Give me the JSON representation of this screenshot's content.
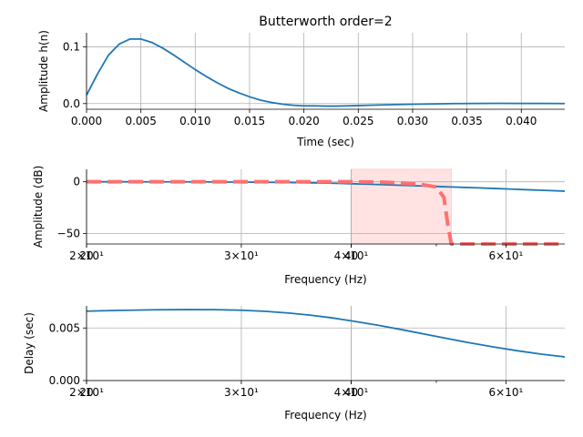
{
  "chart_data": [
    {
      "type": "line",
      "title": "Butterworth order=2",
      "xlabel": "Time (sec)",
      "ylabel": "Amplitude h(n)",
      "xlim": [
        0.0,
        0.044
      ],
      "ylim": [
        -0.01,
        0.125
      ],
      "xticks": [
        "0.000",
        "0.005",
        "0.010",
        "0.015",
        "0.020",
        "0.025",
        "0.030",
        "0.035",
        "0.040"
      ],
      "xtick_values": [
        0.0,
        0.005,
        0.01,
        0.015,
        0.02,
        0.025,
        0.03,
        0.035,
        0.04
      ],
      "yticks": [
        "0.0",
        "0.1"
      ],
      "ytick_values": [
        0.0,
        0.1
      ],
      "grid": true,
      "series": [
        {
          "color": "#1f77b4",
          "x": [
            0.0,
            0.001,
            0.002,
            0.003,
            0.004,
            0.005,
            0.006,
            0.007,
            0.008,
            0.009,
            0.01,
            0.011,
            0.012,
            0.013,
            0.014,
            0.015,
            0.016,
            0.017,
            0.018,
            0.019,
            0.02,
            0.021,
            0.022,
            0.023,
            0.024,
            0.025,
            0.026,
            0.028,
            0.03,
            0.032,
            0.034,
            0.036,
            0.038,
            0.04,
            0.042,
            0.044
          ],
          "y": [
            0.015,
            0.052,
            0.085,
            0.105,
            0.114,
            0.114,
            0.108,
            0.098,
            0.086,
            0.073,
            0.06,
            0.048,
            0.037,
            0.027,
            0.019,
            0.012,
            0.006,
            0.002,
            -0.001,
            -0.003,
            -0.004,
            -0.004,
            -0.0045,
            -0.0045,
            -0.004,
            -0.0035,
            -0.003,
            -0.002,
            -0.0012,
            -0.0005,
            0.0,
            0.0003,
            0.0004,
            0.0003,
            0.0002,
            0.0001
          ]
        }
      ]
    },
    {
      "type": "line",
      "xlabel": "Frequency (Hz)",
      "ylabel": "Amplitude (dB)",
      "xscale": "log",
      "xlim": [
        20,
        70
      ],
      "ylim": [
        -60,
        12
      ],
      "xticks": [
        "2×10¹",
        "20",
        "3×10¹",
        "4×10¹",
        "40",
        "6×10¹"
      ],
      "xtick_values": [
        20,
        20,
        30,
        40,
        40,
        60
      ],
      "minor_xtick_values": [
        50
      ],
      "yticks": [
        "0",
        "−50"
      ],
      "ytick_values": [
        0,
        -50
      ],
      "grid": true,
      "shaded_band": {
        "x": [
          40,
          52
        ],
        "y": [
          -60,
          12
        ],
        "color": "#ffcccc"
      },
      "series": [
        {
          "color": "#1f77b4",
          "x": [
            20,
            22,
            24,
            26,
            28,
            30,
            32,
            34,
            36,
            38,
            40,
            42,
            44,
            46,
            48,
            50,
            52,
            55,
            58,
            61,
            64,
            67,
            70
          ],
          "y": [
            0.0,
            0.0,
            -0.1,
            -0.1,
            -0.2,
            -0.3,
            -0.5,
            -0.7,
            -1.0,
            -1.4,
            -1.9,
            -2.4,
            -2.9,
            -3.5,
            -4.0,
            -4.5,
            -5.0,
            -5.7,
            -6.4,
            -7.1,
            -7.8,
            -8.4,
            -9.0
          ]
        },
        {
          "color": "#ff7070",
          "dashed": true,
          "x": [
            20,
            30,
            38,
            40,
            44,
            48,
            50,
            51,
            51.5,
            52,
            55,
            60,
            70
          ],
          "y": [
            0.0,
            0.0,
            0.0,
            0.0,
            -0.5,
            -2.5,
            -5.0,
            -15.0,
            -40.0,
            -60.0,
            -60.0,
            -60.0,
            -60.0
          ]
        }
      ]
    },
    {
      "type": "line",
      "xlabel": "Frequency (Hz)",
      "ylabel": "Delay (sec)",
      "xscale": "log",
      "xlim": [
        20,
        70
      ],
      "ylim": [
        0.0,
        0.0071
      ],
      "xticks": [
        "2×10¹",
        "20",
        "3×10¹",
        "4×10¹",
        "40",
        "6×10¹"
      ],
      "xtick_values": [
        20,
        20,
        30,
        40,
        40,
        60
      ],
      "minor_xtick_values": [
        50
      ],
      "yticks": [
        "0.000",
        "0.005"
      ],
      "ytick_values": [
        0.0,
        0.005
      ],
      "grid": true,
      "series": [
        {
          "color": "#1f77b4",
          "x": [
            20,
            22,
            24,
            26,
            28,
            30,
            32,
            34,
            36,
            38,
            40,
            43,
            46,
            50,
            54,
            58,
            62,
            66,
            70
          ],
          "y": [
            0.0066,
            0.00668,
            0.00673,
            0.00675,
            0.00674,
            0.00669,
            0.00658,
            0.00642,
            0.00621,
            0.00597,
            0.00568,
            0.00525,
            0.00479,
            0.0042,
            0.00366,
            0.0032,
            0.00282,
            0.0025,
            0.00225
          ]
        }
      ]
    }
  ]
}
